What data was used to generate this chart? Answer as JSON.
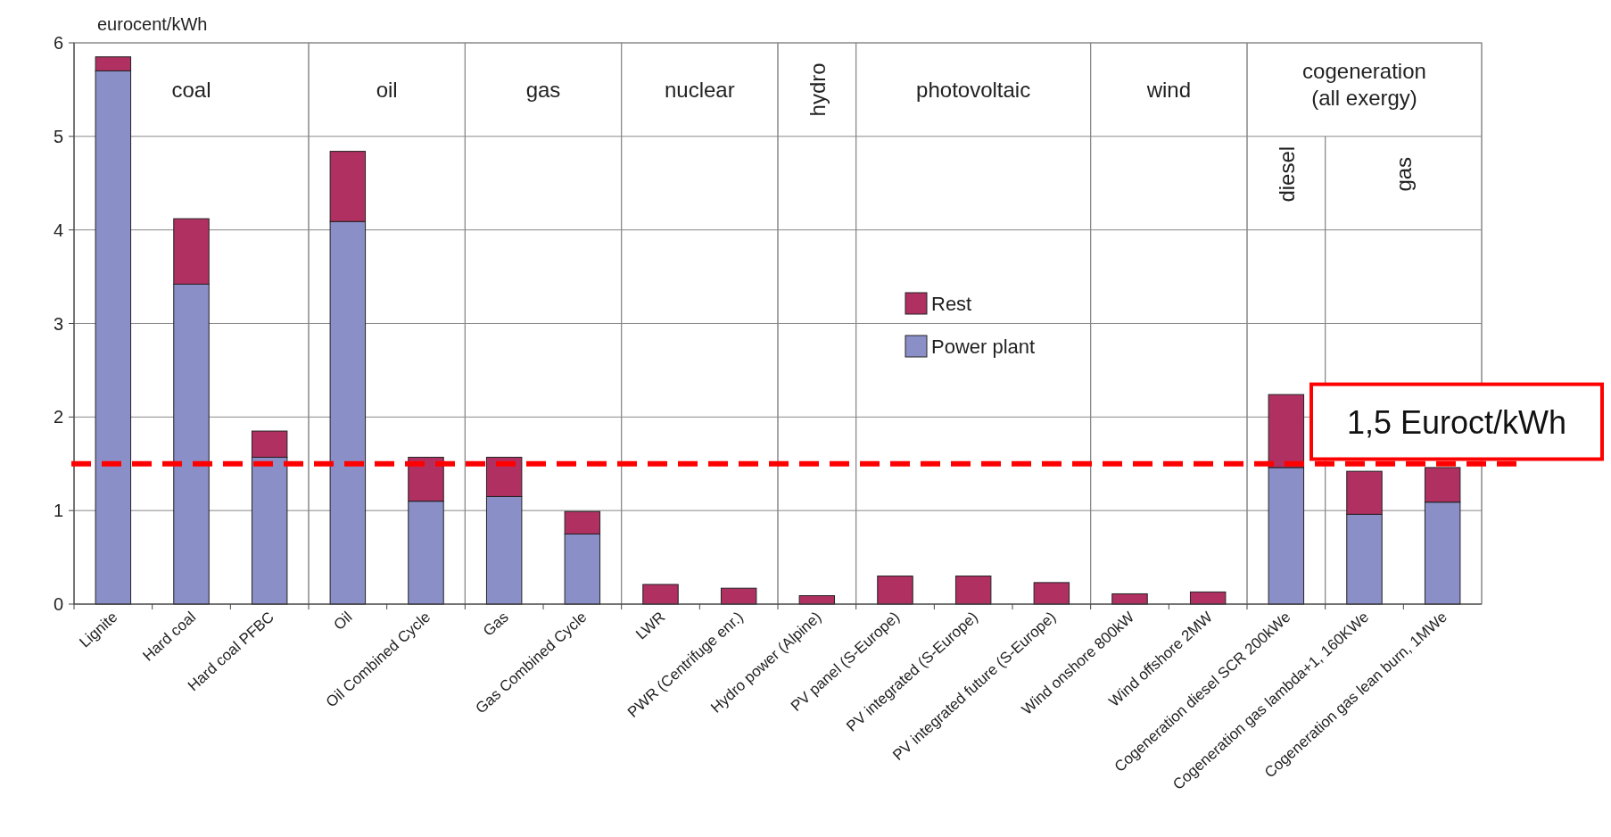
{
  "chart_data": {
    "type": "bar",
    "ylabel": "eurocent/kWh",
    "stacked": true,
    "categories": [
      "Lignite",
      "Hard coal",
      "Hard coal PFBC",
      "Oil",
      "Oil Combined Cycle",
      "Gas",
      "Gas Combined Cycle",
      "LWR",
      "PWR (Centrifuge enr.)",
      "Hydro power (Alpine)",
      "PV panel (S-Europe)",
      "PV integrated (S-Europe)",
      "PV integrated future (S-Europe)",
      "Wind onshore 800kW",
      "Wind offshore 2MW",
      "Cogeneration diesel SCR 200kWe",
      "Cogeneration gas lambda+1, 160KWe",
      "Cogeneration gas lean burn, 1MWe"
    ],
    "series": [
      {
        "name": "Power plant",
        "color": "#8b8fc8",
        "values": [
          5.7,
          3.42,
          1.57,
          4.09,
          1.1,
          1.15,
          0.75,
          0,
          0,
          0,
          0,
          0,
          0,
          0,
          0,
          1.46,
          0.96,
          1.09
        ]
      },
      {
        "name": "Rest",
        "color": "#b03062",
        "values": [
          0.15,
          0.7,
          0.28,
          0.75,
          0.47,
          0.42,
          0.24,
          0.21,
          0.17,
          0.09,
          0.3,
          0.3,
          0.23,
          0.11,
          0.13,
          0.78,
          0.46,
          0.37
        ]
      }
    ],
    "ylim": [
      0,
      6
    ],
    "yticks": [
      0,
      1,
      2,
      3,
      4,
      5,
      6
    ],
    "grid": "y",
    "legend": "center",
    "annotations": [
      "coal",
      "oil",
      "gas",
      "nuclear",
      "hydro",
      "photovoltaic",
      "wind",
      "cogeneration (all exergy)",
      "diesel",
      "gas"
    ],
    "ref_lines": [
      {
        "axis": "y",
        "value": 1.5,
        "label": "1,5 Euroct/kWh",
        "color": "#ff0000",
        "line_style": "dashed"
      }
    ]
  }
}
